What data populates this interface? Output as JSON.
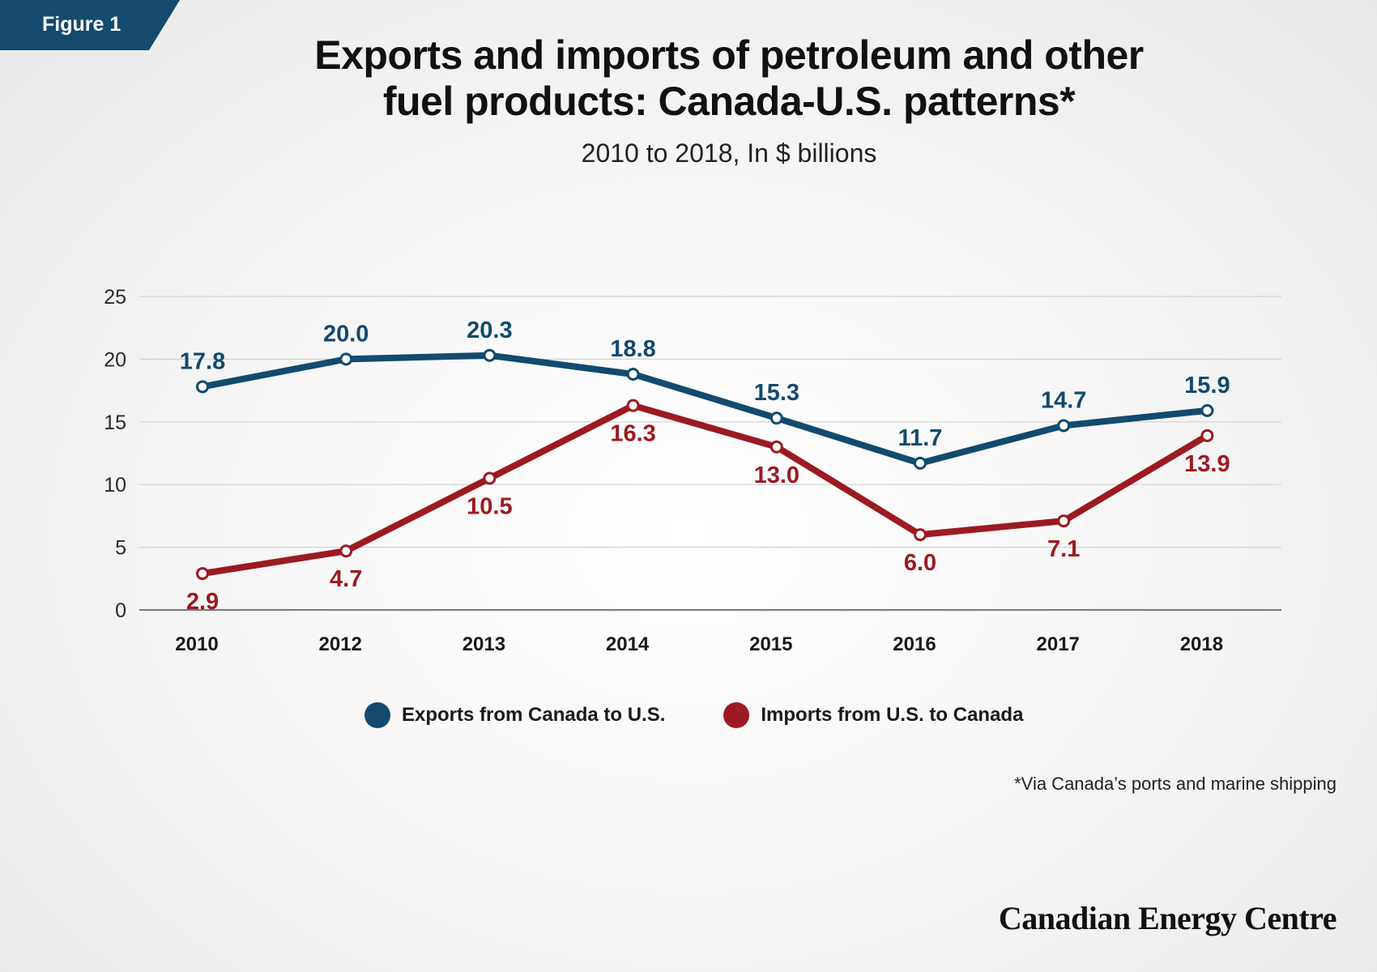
{
  "figure_label": "Figure 1",
  "title_lines": [
    "Exports and imports of petroleum and other",
    "fuel products: Canada-U.S. patterns*"
  ],
  "subtitle": "2010 to 2018, In $ billions",
  "footnote": "*Via Canada’s ports and marine shipping",
  "brand": "Canadian Energy Centre",
  "colors": {
    "exports": "#134a6e",
    "imports": "#9c1a22",
    "figure_tag": "#134a6e",
    "grid": "#d2d2d2",
    "axis": "#777777"
  },
  "chart_data": {
    "type": "line",
    "title": "Exports and imports of petroleum and other fuel products: Canada-U.S. patterns*",
    "subtitle": "2010 to 2018, In $ billions",
    "xlabel": "",
    "ylabel": "",
    "categories": [
      "2010",
      "2012",
      "2013",
      "2014",
      "2015",
      "2016",
      "2017",
      "2018"
    ],
    "series": [
      {
        "name": "Exports from Canada to U.S.",
        "values": [
          17.8,
          20.0,
          20.3,
          18.8,
          15.3,
          11.7,
          14.7,
          15.9
        ],
        "labels": [
          "17.8",
          "20.0",
          "20.3",
          "18.8",
          "15.3",
          "11.7",
          "14.7",
          "15.9"
        ]
      },
      {
        "name": "Imports from U.S. to Canada",
        "values": [
          2.9,
          4.7,
          10.5,
          16.3,
          13.0,
          6.0,
          7.1,
          13.9
        ],
        "labels": [
          "2.9",
          "4.7",
          "10.5",
          "16.3",
          "13.0",
          "6.0",
          "7.1",
          "13.9"
        ]
      }
    ],
    "ylim": [
      0,
      25
    ],
    "yticks": [
      0,
      5,
      10,
      15,
      20,
      25
    ],
    "grid": true,
    "legend": "bottom"
  }
}
